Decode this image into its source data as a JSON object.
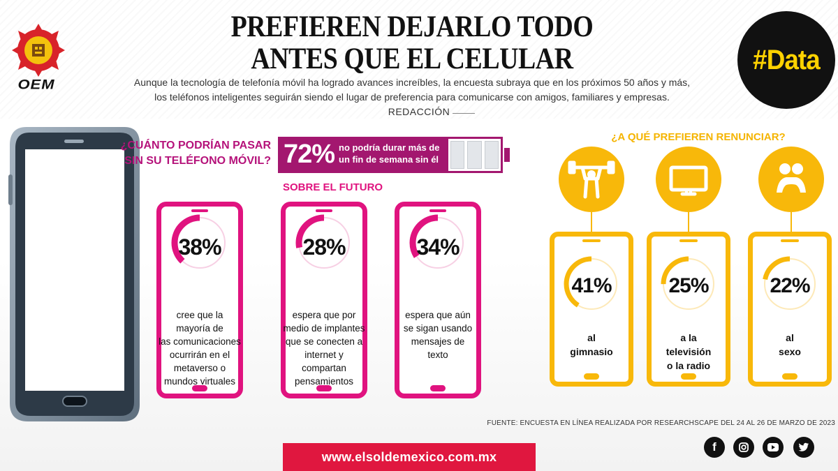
{
  "header": {
    "logo_text": "OEM",
    "headline_line1": "PREFIEREN DEJARLO TODO",
    "headline_line2": "ANTES QUE EL CELULAR",
    "intro_line1": "Aunque la tecnología de telefonía móvil ha logrado avances increíbles, la encuesta subraya que en los próximos 50 años y más,",
    "intro_line2": "los teléfonos inteligentes seguirán siendo el lugar de preferencia para comunicarse con amigos, familiares y empresas.",
    "byline": "REDACCIÓN",
    "badge": "#Data"
  },
  "question": {
    "line1": "¿CUÁNTO PODRÍAN PASAR",
    "line2": "SIN SU TELÉFONO MÓVIL?",
    "percent": "72%",
    "text_line1": "no podría durar más de",
    "text_line2": "un fin de semana sin él"
  },
  "future": {
    "title": "SOBRE EL FUTURO",
    "cards": [
      {
        "percent": "38%",
        "lines": [
          "cree que la mayoría de",
          "las comunicaciones",
          "ocurrirán en el",
          "metaverso o",
          "mundos virtuales"
        ]
      },
      {
        "percent": "28%",
        "lines": [
          "espera que por",
          "medio de implantes",
          "que se conecten a",
          "internet y compartan",
          "pensamientos"
        ]
      },
      {
        "percent": "34%",
        "lines": [
          "espera que aún",
          "se sigan usando",
          "mensajes de",
          "texto"
        ]
      }
    ]
  },
  "renounce": {
    "title": "¿A QUÉ PREFIEREN RENUNCIAR?",
    "cards": [
      {
        "icon": "weightlifter-icon",
        "percent": "41%",
        "lines": [
          "al",
          "gimnasio"
        ]
      },
      {
        "icon": "television-icon",
        "percent": "25%",
        "lines": [
          "a la",
          "televisión",
          "o la radio"
        ]
      },
      {
        "icon": "couple-icon",
        "percent": "22%",
        "lines": [
          "al",
          "sexo"
        ]
      }
    ]
  },
  "source": "FUENTE: ENCUESTA EN LÍNEA REALIZADA POR RESEARCHSCAPE DEL 24 AL 26 DE MARZO DE 2023",
  "url": "www.elsoldemexico.com.mx",
  "social": [
    {
      "icon": "facebook-icon",
      "glyph": "f"
    },
    {
      "icon": "instagram-icon",
      "glyph": ""
    },
    {
      "icon": "youtube-icon",
      "glyph": ""
    },
    {
      "icon": "twitter-icon",
      "glyph": ""
    }
  ],
  "colors": {
    "magenta": "#e0137f",
    "purple": "#a3176f",
    "yellow": "#f8b80a",
    "red": "#e0173f"
  },
  "chart_data": [
    {
      "type": "bar",
      "categories": [
        "no podría durar más de un fin de semana sin él"
      ],
      "values": [
        72
      ],
      "ylim": [
        0,
        100
      ]
    },
    {
      "type": "pie",
      "title": "SOBRE EL FUTURO",
      "categories": [
        "cree que la mayoría de las comunicaciones ocurrirán en el metaverso o mundos virtuales",
        "espera que por medio de implantes que se conecten a internet y compartan pensamientos",
        "espera que aún se sigan usando mensajes de texto"
      ],
      "values": [
        38,
        28,
        34
      ]
    },
    {
      "type": "pie",
      "title": "¿A QUÉ PREFIEREN RENUNCIAR?",
      "categories": [
        "al gimnasio",
        "a la televisión o la radio",
        "al sexo"
      ],
      "values": [
        41,
        25,
        22
      ]
    }
  ]
}
